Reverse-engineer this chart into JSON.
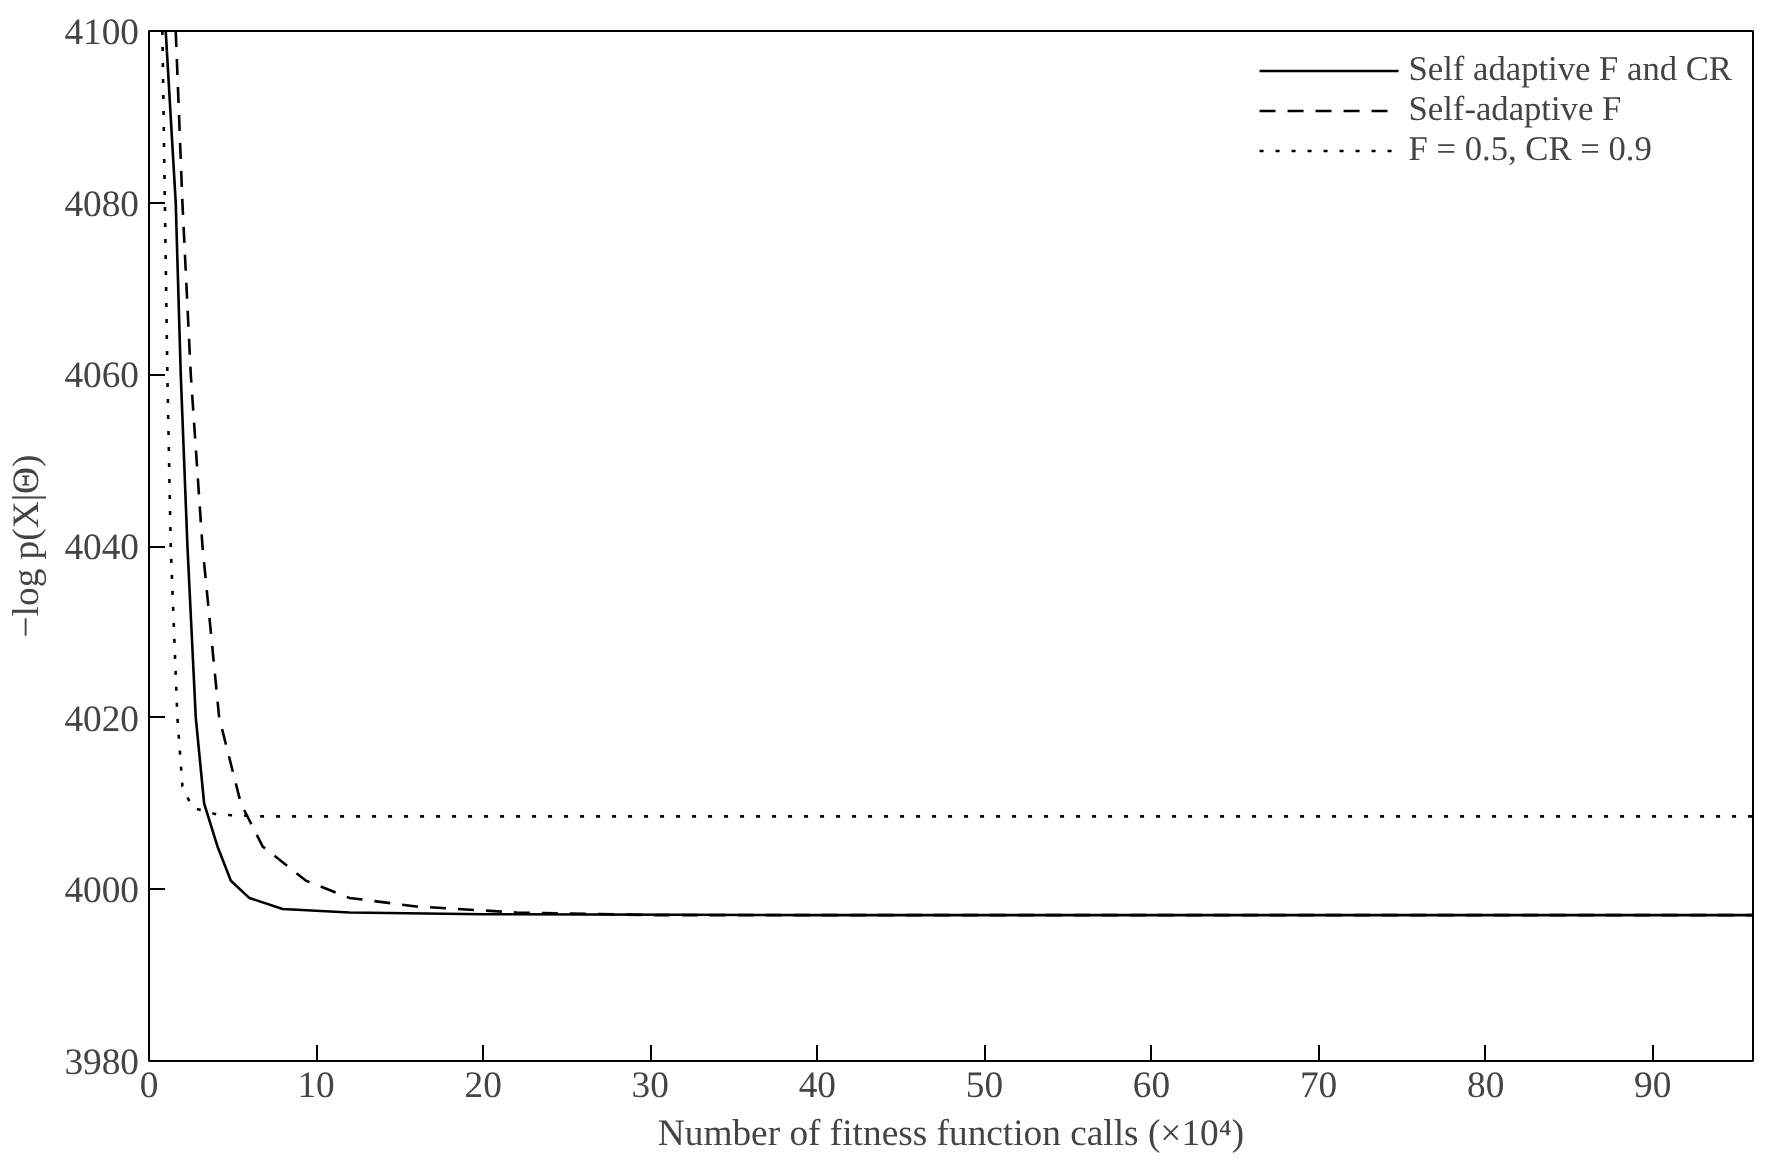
{
  "chart_data": {
    "type": "line",
    "xlabel": "Number of fitness function calls (×10⁴)",
    "ylabel": "−log p(X|Θ)",
    "xlim": [
      0,
      96
    ],
    "ylim": [
      3980,
      4100
    ],
    "xticks": [
      0,
      10,
      20,
      30,
      40,
      50,
      60,
      70,
      80,
      90
    ],
    "yticks": [
      3980,
      4000,
      4020,
      4040,
      4060,
      4080,
      4100
    ],
    "grid": false,
    "legend": "top right",
    "marker": "none",
    "series": [
      {
        "name": "Self adaptive F and CR",
        "color": "#000000",
        "line_style": "solid",
        "x": [
          1.0,
          1.6,
          1.9,
          2.3,
          2.8,
          3.3,
          4.1,
          4.9,
          6,
          8,
          12,
          20,
          40,
          96
        ],
        "values": [
          4100,
          4080,
          4060,
          4040,
          4020,
          4010,
          4005,
          4001,
          3999,
          3997.7,
          3997.3,
          3997.1,
          3997,
          3997
        ]
      },
      {
        "name": "Self-adaptive F",
        "color": "#000000",
        "line_style": "dashed",
        "x": [
          1.6,
          2.0,
          2.5,
          3.2,
          4.2,
          5.5,
          6.8,
          9.4,
          12,
          16,
          22,
          30,
          60,
          96
        ],
        "values": [
          4100,
          4080,
          4060,
          4040,
          4020,
          4010,
          4005,
          4001,
          3999,
          3998,
          3997.3,
          3997,
          3997,
          3997
        ]
      },
      {
        "name": "F = 0.5, CR = 0.9",
        "color": "#000000",
        "line_style": "dotted",
        "x": [
          0.8,
          0.95,
          1.1,
          1.3,
          1.7,
          2.0,
          2.6,
          4.1,
          6.8,
          20,
          96
        ],
        "values": [
          4100,
          4080,
          4060,
          4040,
          4020,
          4012,
          4009.5,
          4008.7,
          4008.5,
          4008.5,
          4008.5
        ]
      }
    ]
  }
}
